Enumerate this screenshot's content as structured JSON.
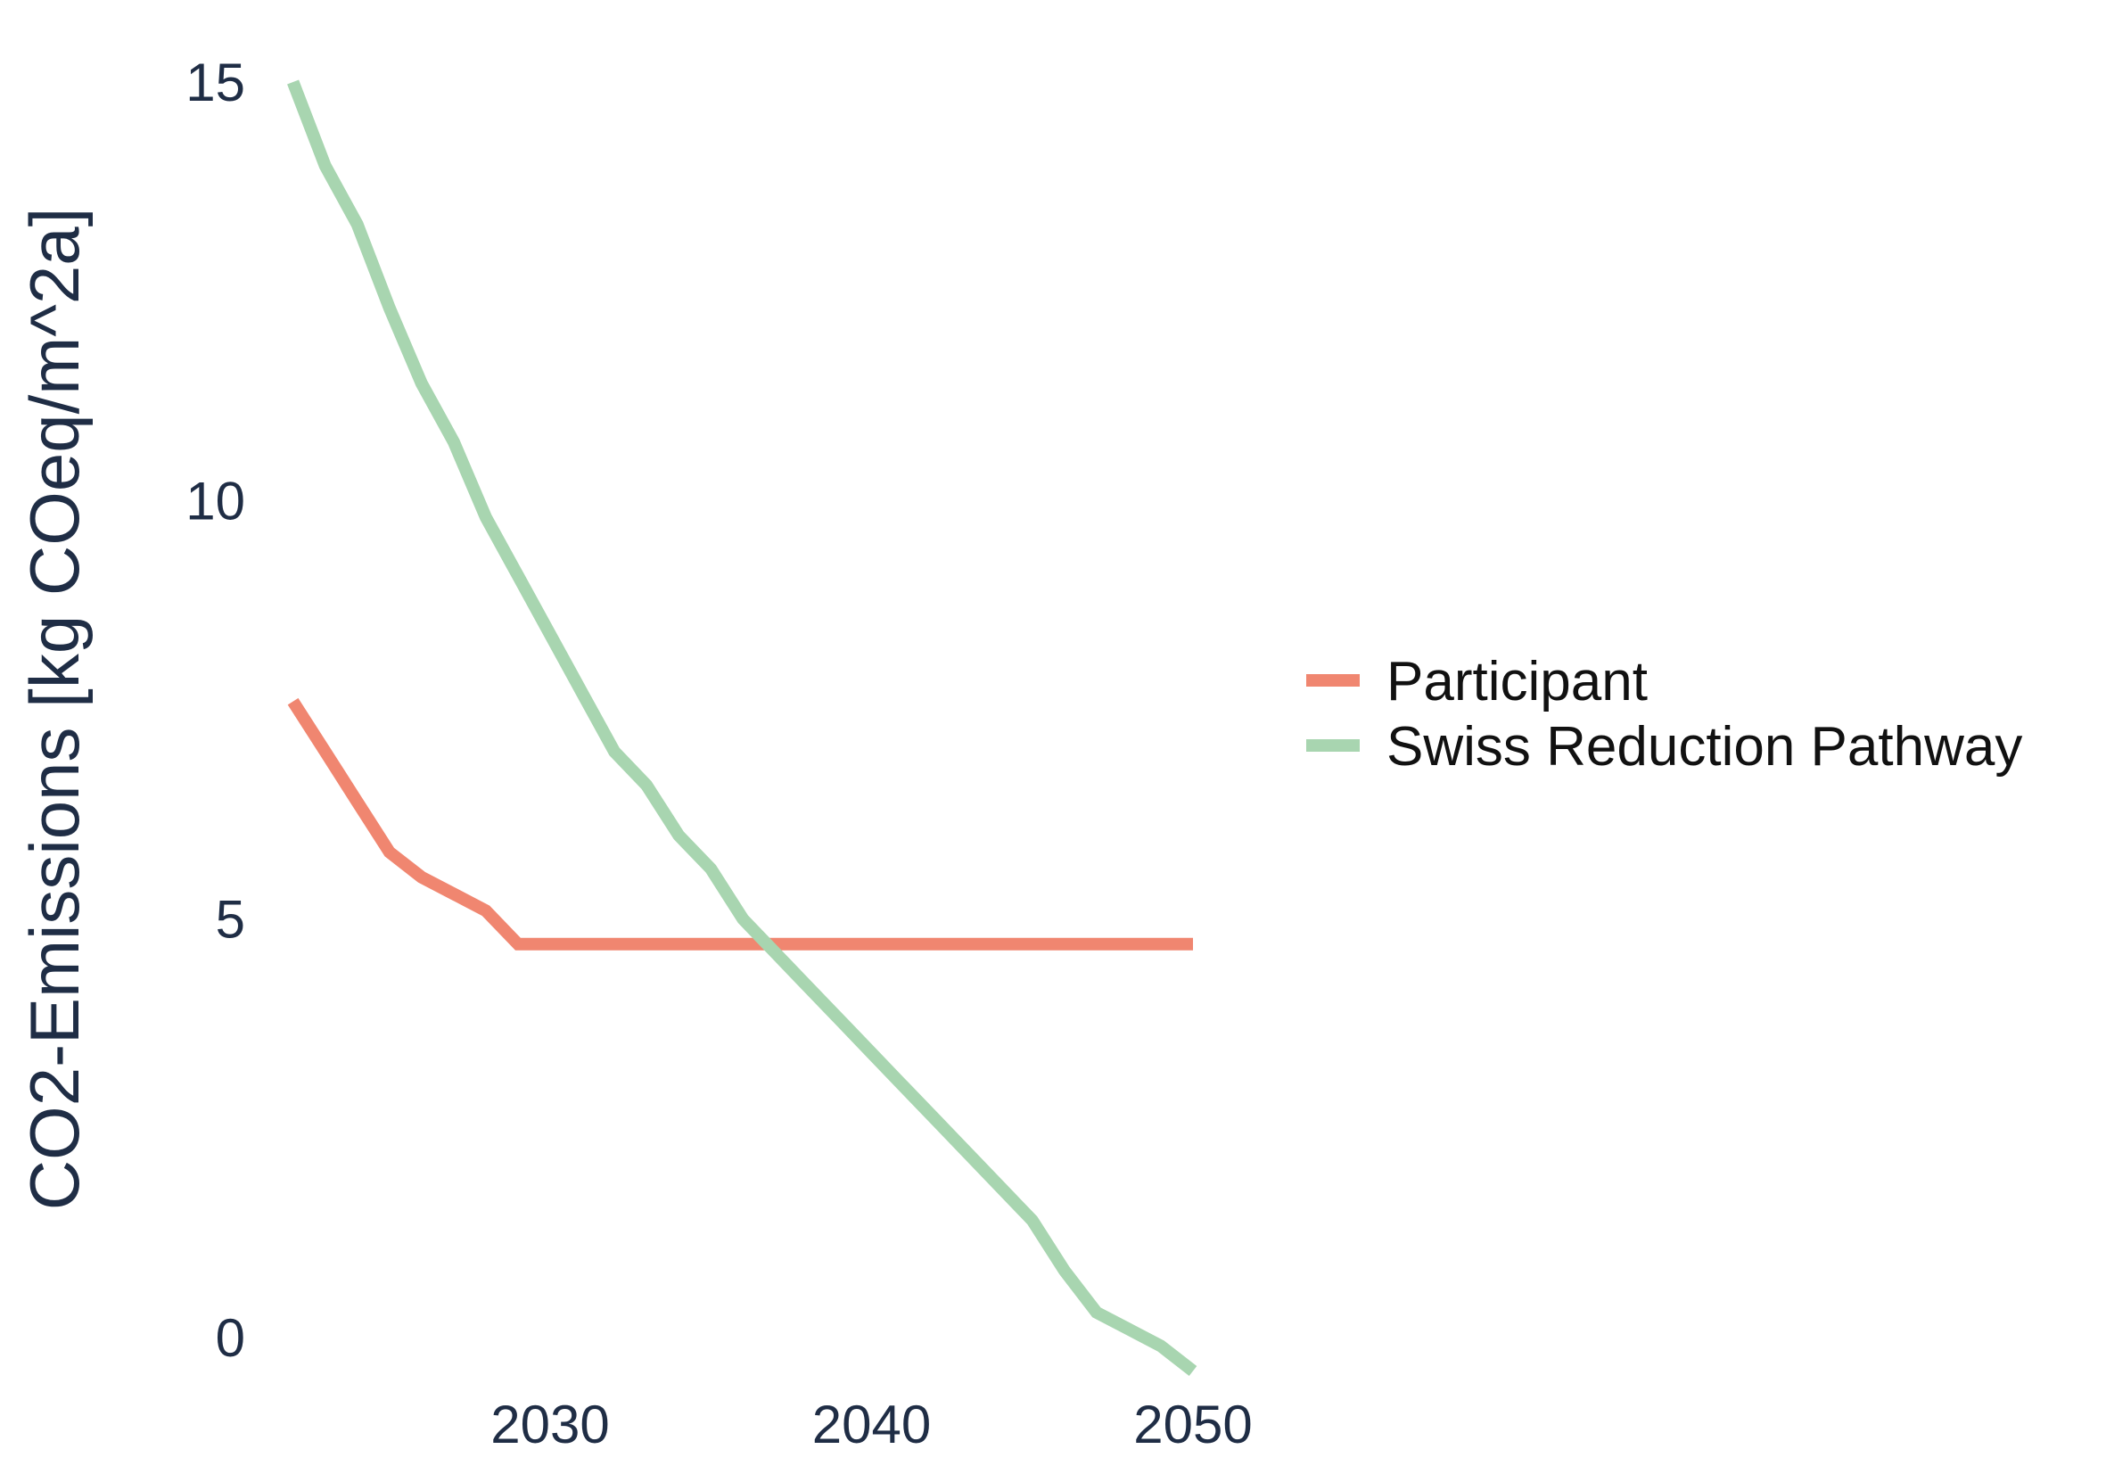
{
  "chart_data": {
    "type": "line",
    "title": "",
    "xlabel": "",
    "ylabel": "CO2-Emissions [kg COeq/m^2a]",
    "xlim": [
      2021.5,
      2052.5
    ],
    "ylim": [
      -0.5,
      15.5
    ],
    "x_ticks": [
      2030,
      2040,
      2050
    ],
    "x_tick_labels": [
      "2030",
      "2040",
      "2050"
    ],
    "y_ticks": [
      0,
      5,
      10,
      15
    ],
    "y_tick_labels": [
      "0",
      "5",
      "10",
      "15"
    ],
    "grid": false,
    "legend_position": "right",
    "series": [
      {
        "name": "Participant",
        "color": "#f08670",
        "x": [
          2022,
          2023,
          2024,
          2025,
          2026,
          2027,
          2028,
          2029,
          2030,
          2031,
          2032,
          2033,
          2034,
          2035,
          2036,
          2037,
          2038,
          2039,
          2040,
          2041,
          2042,
          2043,
          2044,
          2045,
          2046,
          2047,
          2048,
          2049,
          2050
        ],
        "y": [
          7.6,
          7.0,
          6.4,
          5.8,
          5.5,
          5.3,
          5.1,
          4.7,
          4.7,
          4.7,
          4.7,
          4.7,
          4.7,
          4.7,
          4.7,
          4.7,
          4.7,
          4.7,
          4.7,
          4.7,
          4.7,
          4.7,
          4.7,
          4.7,
          4.7,
          4.7,
          4.7,
          4.7,
          4.7
        ]
      },
      {
        "name": "Swiss Reduction Pathway",
        "color": "#a8d5b0",
        "x": [
          2022,
          2023,
          2024,
          2025,
          2026,
          2027,
          2028,
          2029,
          2030,
          2031,
          2032,
          2033,
          2034,
          2035,
          2036,
          2037,
          2038,
          2039,
          2040,
          2041,
          2042,
          2043,
          2044,
          2045,
          2046,
          2047,
          2048,
          2049,
          2050
        ],
        "y": [
          15.0,
          14.0,
          13.3,
          12.3,
          11.4,
          10.7,
          9.8,
          9.1,
          8.4,
          7.7,
          7.0,
          6.6,
          6.0,
          5.6,
          5.0,
          4.6,
          4.2,
          3.8,
          3.4,
          3.0,
          2.6,
          2.2,
          1.8,
          1.4,
          0.8,
          0.3,
          0.1,
          -0.1,
          -0.4
        ]
      }
    ]
  }
}
